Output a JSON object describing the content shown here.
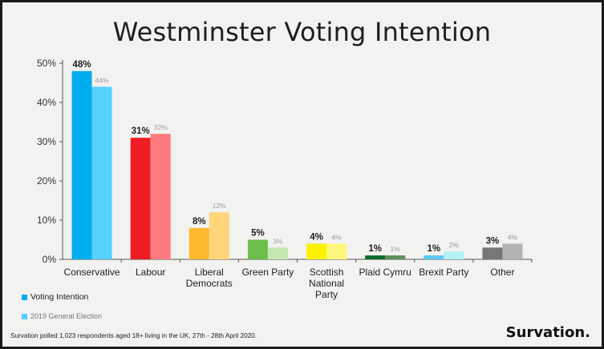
{
  "chart_data": {
    "type": "bar",
    "title": "Westminster Voting Intention",
    "categories": [
      "Conservative",
      "Labour",
      "Liberal Democrats",
      "Green Party",
      "Scottish National Party",
      "Plaid Cymru",
      "Brexit Party",
      "Other"
    ],
    "category_lines": [
      [
        "Conservative"
      ],
      [
        "Labour"
      ],
      [
        "Liberal",
        "Democrats"
      ],
      [
        "Green Party"
      ],
      [
        "Scottish",
        "National",
        "Party"
      ],
      [
        "Plaid Cymru"
      ],
      [
        "Brexit Party"
      ],
      [
        "Other"
      ]
    ],
    "series": [
      {
        "name": "Voting Intention",
        "values": [
          48,
          31,
          8,
          5,
          4,
          1,
          1,
          3
        ],
        "colors": [
          "#00aeef",
          "#ee1d23",
          "#fdb92e",
          "#6cc04a",
          "#fff200",
          "#0b6b2c",
          "#5bc8f5",
          "#777777"
        ]
      },
      {
        "name": "2019 General Election",
        "values": [
          44,
          32,
          12,
          3,
          4,
          1,
          2,
          4
        ],
        "colors": [
          "#55d0ff",
          "#ff7b80",
          "#ffd57a",
          "#c5e8b0",
          "#fff77a",
          "#5c8f5a",
          "#b5f2f5",
          "#b3b3b3"
        ]
      }
    ],
    "ylim": [
      0,
      50
    ],
    "yticks": [
      0,
      10,
      20,
      30,
      40,
      50
    ],
    "ytick_format": "{v}%",
    "value_format": "{v}%",
    "grid": false,
    "legend_position": "bottom-left"
  },
  "legend": {
    "items": [
      {
        "label": "Voting Intention",
        "color": "#00aeef"
      },
      {
        "label": "2019 General Election",
        "color": "#55d0ff"
      }
    ]
  },
  "footnote": "Survation polled 1,023 respondents aged 18+ living in the UK, 27th - 28th April 2020.",
  "brand": "Survation."
}
